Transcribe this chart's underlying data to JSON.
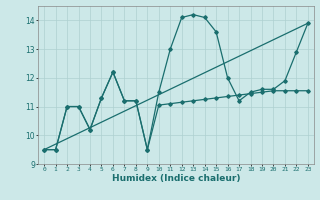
{
  "xlabel": "Humidex (Indice chaleur)",
  "bg_color": "#cce8e8",
  "grid_color": "#aed0d0",
  "line_color": "#1a6e6e",
  "xlim": [
    -0.5,
    23.5
  ],
  "ylim": [
    9.0,
    14.5
  ],
  "yticks": [
    9,
    10,
    11,
    12,
    13,
    14
  ],
  "xticks": [
    0,
    1,
    2,
    3,
    4,
    5,
    6,
    7,
    8,
    9,
    10,
    11,
    12,
    13,
    14,
    15,
    16,
    17,
    18,
    19,
    20,
    21,
    22,
    23
  ],
  "curve1_x": [
    0,
    1,
    2,
    3,
    4,
    5,
    6,
    7,
    8,
    9,
    10,
    11,
    12,
    13,
    14,
    15,
    16,
    17,
    18,
    19,
    20,
    21,
    22,
    23
  ],
  "curve1_y": [
    9.5,
    9.5,
    11.0,
    11.0,
    10.2,
    11.3,
    12.2,
    11.2,
    11.2,
    9.5,
    11.5,
    13.0,
    14.1,
    14.2,
    14.1,
    13.6,
    12.0,
    11.2,
    11.5,
    11.6,
    11.6,
    11.9,
    12.9,
    13.9
  ],
  "curve2_x": [
    0,
    1,
    2,
    3,
    4,
    5,
    6,
    7,
    8,
    9,
    10,
    11,
    12,
    13,
    14,
    15,
    16,
    17,
    18,
    19,
    20,
    21,
    22,
    23
  ],
  "curve2_y": [
    9.5,
    9.5,
    11.0,
    11.0,
    10.2,
    11.3,
    12.2,
    11.2,
    11.2,
    9.5,
    11.05,
    11.1,
    11.15,
    11.2,
    11.25,
    11.3,
    11.35,
    11.4,
    11.45,
    11.5,
    11.55,
    11.55,
    11.55,
    11.55
  ],
  "line3_x": [
    0,
    23
  ],
  "line3_y": [
    9.5,
    13.9
  ]
}
